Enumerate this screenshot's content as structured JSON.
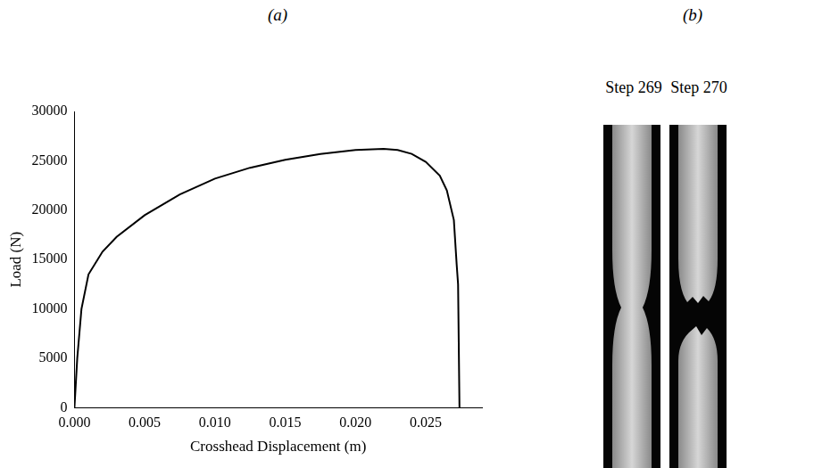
{
  "chart_data": {
    "type": "line",
    "panel_label": "(a)",
    "x_label": "Crosshead Displacement (m)",
    "y_label": "Load (N)",
    "x": [
      0,
      0.0002,
      0.0005,
      0.001,
      0.002,
      0.003,
      0.005,
      0.0075,
      0.01,
      0.0125,
      0.015,
      0.0175,
      0.02,
      0.022,
      0.023,
      0.024,
      0.025,
      0.026,
      0.0265,
      0.027,
      0.0272,
      0.0273,
      0.0274
    ],
    "values": [
      0,
      5000,
      10000,
      13500,
      15800,
      17300,
      19500,
      21600,
      23200,
      24300,
      25100,
      25700,
      26100,
      26200,
      26100,
      25700,
      24900,
      23500,
      22000,
      19000,
      14500,
      12500,
      0
    ],
    "color": "#000000",
    "xlim": [
      0,
      0.029
    ],
    "xticks": [
      {
        "value": 0,
        "label": "0.000"
      },
      {
        "value": 0.005,
        "label": "0.005"
      },
      {
        "value": 0.01,
        "label": "0.010"
      },
      {
        "value": 0.015,
        "label": "0.015"
      },
      {
        "value": 0.02,
        "label": "0.020"
      },
      {
        "value": 0.025,
        "label": "0.025"
      }
    ],
    "ylim": [
      0,
      30000
    ],
    "yticks": [
      0,
      5000,
      10000,
      15000,
      20000,
      25000,
      30000
    ],
    "grid": false
  },
  "photos": {
    "panel_label": "(b)",
    "captions": [
      "Step 269",
      "Step 270"
    ]
  }
}
